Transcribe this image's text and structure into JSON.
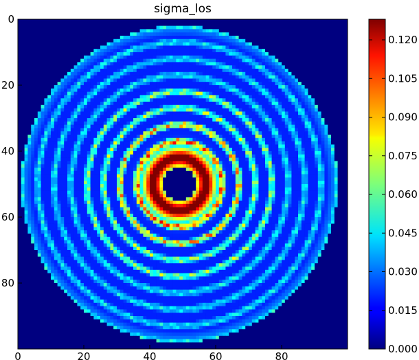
{
  "chart_data": {
    "type": "heatmap",
    "title": "sigma_los",
    "xlabel": "",
    "ylabel": "",
    "image_size": [
      100,
      100
    ],
    "xlim": [
      0,
      100
    ],
    "ylim": [
      100,
      0
    ],
    "x_ticks": [
      "0",
      "20",
      "40",
      "60",
      "80"
    ],
    "y_ticks": [
      "0",
      "20",
      "40",
      "60",
      "80"
    ],
    "colormap": "jet",
    "colorbar": {
      "vmin": 0.0,
      "vmax": 0.128,
      "ticks": [
        "0.000",
        "0.015",
        "0.030",
        "0.045",
        "0.060",
        "0.075",
        "0.090",
        "0.105",
        "0.120"
      ]
    },
    "structure": {
      "center": [
        49,
        50
      ],
      "inner_hole_radius": 5,
      "peak_value": 0.128,
      "peak_ring_radius": 8,
      "outer_disk_radius": 48,
      "ring_spacing": 5,
      "description_values": {
        "background": 0.0,
        "outer_disk_level": 0.02,
        "blob_level_outer": 0.035,
        "blob_level_mid": 0.06,
        "blob_level_inner": 0.09
      }
    }
  }
}
